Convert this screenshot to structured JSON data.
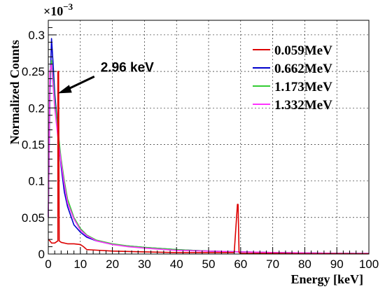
{
  "chart_data": {
    "type": "line",
    "xlabel": "Energy [keV]",
    "ylabel": "Normalized Counts",
    "y_multiplier_label": "×10",
    "y_multiplier_exponent": "−3",
    "xlim": [
      0,
      100
    ],
    "ylim": [
      0,
      0.32
    ],
    "x_ticks": [
      "0",
      "10",
      "20",
      "30",
      "40",
      "50",
      "60",
      "70",
      "80",
      "90",
      "100"
    ],
    "y_ticks": [
      "0",
      "0.05",
      "0.1",
      "0.15",
      "0.2",
      "0.25",
      "0.3"
    ],
    "grid": true,
    "legend_position": "top-right",
    "series": [
      {
        "name": "0.059MeV",
        "color": "#dd0000",
        "x": [
          0,
          0.5,
          1,
          2,
          3,
          3,
          3.2,
          3.4,
          4,
          6,
          8,
          10,
          11,
          12,
          20,
          30,
          40,
          50,
          55,
          58,
          59,
          59.2,
          59.5,
          60,
          62,
          70,
          80,
          90,
          100
        ],
        "y": [
          0.02,
          0.018,
          0.015,
          0.015,
          0.018,
          0.25,
          0.25,
          0.018,
          0.016,
          0.014,
          0.014,
          0.013,
          0.01,
          0.006,
          0.004,
          0.003,
          0.002,
          0.002,
          0.002,
          0.002,
          0.068,
          0.068,
          0.002,
          0.001,
          0.001,
          0.001,
          0.0005,
          0.0005,
          0.0003
        ]
      },
      {
        "name": "0.662MeV",
        "color": "#0000cc",
        "x": [
          0,
          0.5,
          1,
          1.5,
          2,
          3,
          4,
          5,
          6,
          8,
          10,
          12,
          15,
          20,
          25,
          30,
          40,
          50,
          60,
          70,
          80,
          90,
          100
        ],
        "y": [
          0.05,
          0.22,
          0.295,
          0.26,
          0.22,
          0.17,
          0.12,
          0.085,
          0.065,
          0.04,
          0.03,
          0.023,
          0.018,
          0.013,
          0.011,
          0.009,
          0.006,
          0.004,
          0.003,
          0.002,
          0.0015,
          0.001,
          0.0008
        ]
      },
      {
        "name": "1.173MeV",
        "color": "#33cc33",
        "x": [
          0,
          0.5,
          1,
          1.5,
          2,
          3,
          4,
          5,
          6,
          8,
          10,
          12,
          15,
          20,
          25,
          30,
          40,
          50,
          60,
          70,
          80,
          90,
          100
        ],
        "y": [
          0.05,
          0.24,
          0.265,
          0.24,
          0.21,
          0.17,
          0.13,
          0.1,
          0.075,
          0.05,
          0.035,
          0.026,
          0.019,
          0.014,
          0.011,
          0.009,
          0.006,
          0.004,
          0.003,
          0.002,
          0.0015,
          0.001,
          0.0008
        ]
      },
      {
        "name": "1.332MeV",
        "color": "#ff33ff",
        "x": [
          0,
          0.5,
          1,
          1.5,
          2,
          3,
          4,
          5,
          6,
          8,
          10,
          12,
          15,
          20,
          25,
          30,
          40,
          50,
          60,
          70,
          80,
          90,
          100
        ],
        "y": [
          0.05,
          0.25,
          0.26,
          0.23,
          0.2,
          0.16,
          0.125,
          0.095,
          0.07,
          0.048,
          0.033,
          0.025,
          0.018,
          0.013,
          0.01,
          0.008,
          0.005,
          0.004,
          0.003,
          0.002,
          0.0015,
          0.001,
          0.0008
        ]
      }
    ],
    "annotations": [
      {
        "text": "2.96 keV",
        "points_to_x": 3,
        "points_to_y": 0.22
      }
    ]
  }
}
